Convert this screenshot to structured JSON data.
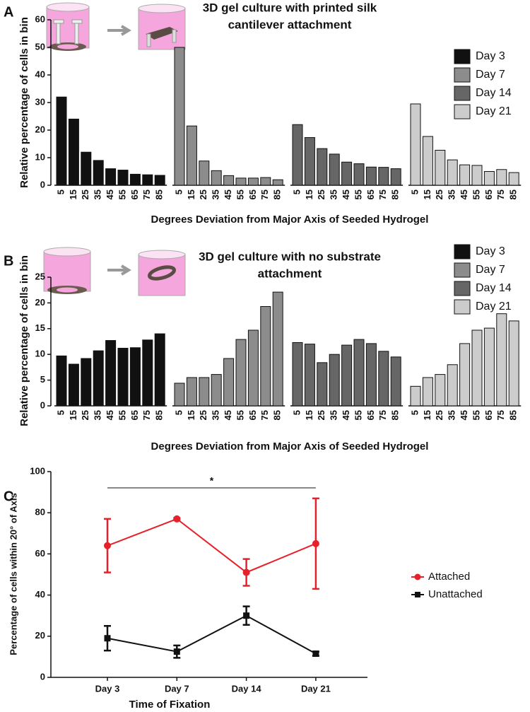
{
  "chart_data": [
    {
      "type": "bar",
      "panel_label": "A",
      "title_lines": [
        "3D gel culture with printed silk",
        "cantilever attachment"
      ],
      "y_label": "Relative percentage of cells in bin",
      "x_label": "Degrees Deviation from Major Axis of Seeded Hydrogel",
      "categories": [
        "5",
        "15",
        "25",
        "35",
        "45",
        "55",
        "65",
        "75",
        "85"
      ],
      "series": [
        {
          "name": "Day 3",
          "color": "#111111",
          "values": [
            32,
            24,
            12,
            9,
            6,
            5.5,
            4,
            3.8,
            3.6
          ]
        },
        {
          "name": "Day 7",
          "color": "#8c8c8c",
          "values": [
            50,
            21.5,
            8.8,
            5.3,
            3.5,
            2.6,
            2.6,
            2.8,
            2
          ]
        },
        {
          "name": "Day 14",
          "color": "#666666",
          "values": [
            22,
            17.3,
            13.3,
            11.3,
            8.4,
            7.8,
            6.6,
            6.5,
            6
          ]
        },
        {
          "name": "Day 21",
          "color": "#cccccc",
          "values": [
            29.5,
            17.7,
            12.7,
            9.2,
            7.4,
            7.2,
            5,
            5.7,
            4.6
          ]
        }
      ],
      "ylim": [
        0,
        60
      ],
      "yticks": [
        0,
        10,
        20,
        30,
        40,
        50,
        60
      ],
      "legend": "upper right"
    },
    {
      "type": "bar",
      "panel_label": "B",
      "title_lines": [
        "3D gel culture with no substrate",
        "attachment"
      ],
      "y_label": "Relative percentage of cells in bin",
      "x_label": "Degrees Deviation from Major Axis of Seeded Hydrogel",
      "categories": [
        "5",
        "15",
        "25",
        "35",
        "45",
        "55",
        "65",
        "75",
        "85"
      ],
      "series": [
        {
          "name": "Day 3",
          "color": "#111111",
          "values": [
            9.7,
            8.1,
            9.2,
            10.7,
            12.7,
            11.2,
            11.3,
            12.8,
            14
          ]
        },
        {
          "name": "Day 7",
          "color": "#8c8c8c",
          "values": [
            4.4,
            5.5,
            5.5,
            6.1,
            9.2,
            12.9,
            14.7,
            19.3,
            22.1
          ]
        },
        {
          "name": "Day 14",
          "color": "#666666",
          "values": [
            12.3,
            12,
            8.4,
            10,
            11.8,
            12.9,
            12.1,
            10.6,
            9.5
          ]
        },
        {
          "name": "Day 21",
          "color": "#cccccc",
          "values": [
            3.8,
            5.5,
            6.1,
            8,
            12.1,
            14.7,
            15.1,
            17.9,
            16.5
          ]
        }
      ],
      "ylim": [
        0,
        25
      ],
      "yticks": [
        0,
        5,
        10,
        15,
        20,
        25
      ],
      "legend": "upper right"
    },
    {
      "type": "line",
      "panel_label": "C",
      "y_label": "Percentage of cells within 20° of Axis",
      "x_label": "Time of Fixation",
      "categories": [
        "Day 3",
        "Day 7",
        "Day 14",
        "Day 21"
      ],
      "series": [
        {
          "name": "Attached",
          "color": "#e8202a",
          "marker": "circle",
          "values": [
            64,
            77,
            51,
            65
          ],
          "errors": [
            13,
            0.5,
            6.5,
            22
          ]
        },
        {
          "name": "Unattached",
          "color": "#111111",
          "marker": "square",
          "values": [
            19,
            12.5,
            30,
            11.5
          ],
          "errors": [
            6,
            3,
            4.5,
            1
          ]
        }
      ],
      "ylim": [
        0,
        100
      ],
      "yticks": [
        0,
        20,
        40,
        60,
        80,
        100
      ],
      "legend": "right",
      "significance": {
        "label": "*",
        "from": "Day 3",
        "to": "Day 21"
      }
    }
  ]
}
